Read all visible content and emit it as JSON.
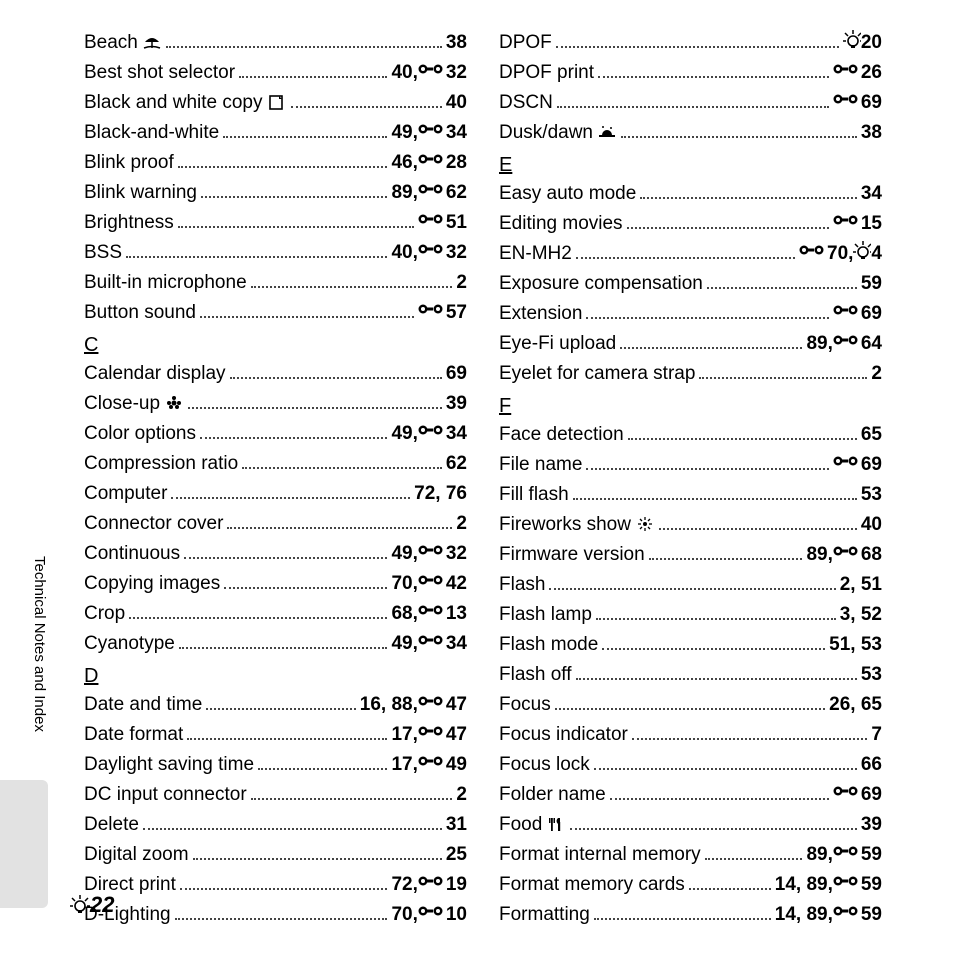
{
  "sideLabel": "Technical Notes and Index",
  "pageNumber": "22",
  "columns": [
    [
      {
        "t": "entry",
        "label": "Beach",
        "icon": "umbrella",
        "pages": [
          {
            "n": "38"
          }
        ]
      },
      {
        "t": "entry",
        "label": "Best shot selector",
        "pages": [
          {
            "n": "40,"
          },
          {
            "ref": true,
            "n": "32"
          }
        ]
      },
      {
        "t": "entry",
        "label": "Black and white copy",
        "icon": "doc",
        "pages": [
          {
            "n": "40"
          }
        ]
      },
      {
        "t": "entry",
        "label": "Black-and-white",
        "pages": [
          {
            "n": "49,"
          },
          {
            "ref": true,
            "n": "34"
          }
        ]
      },
      {
        "t": "entry",
        "label": "Blink proof",
        "pages": [
          {
            "n": "46,"
          },
          {
            "ref": true,
            "n": "28"
          }
        ]
      },
      {
        "t": "entry",
        "label": "Blink warning",
        "pages": [
          {
            "n": "89,"
          },
          {
            "ref": true,
            "n": "62"
          }
        ]
      },
      {
        "t": "entry",
        "label": "Brightness",
        "pages": [
          {
            "ref": true,
            "n": "51"
          }
        ]
      },
      {
        "t": "entry",
        "label": "BSS",
        "pages": [
          {
            "n": "40,"
          },
          {
            "ref": true,
            "n": "32"
          }
        ]
      },
      {
        "t": "entry",
        "label": "Built-in microphone",
        "pages": [
          {
            "n": "2"
          }
        ]
      },
      {
        "t": "entry",
        "label": "Button sound",
        "pages": [
          {
            "ref": true,
            "n": "57"
          }
        ]
      },
      {
        "t": "head",
        "label": "C"
      },
      {
        "t": "entry",
        "label": "Calendar display",
        "pages": [
          {
            "n": "69"
          }
        ]
      },
      {
        "t": "entry",
        "label": "Close-up",
        "icon": "flower",
        "pages": [
          {
            "n": "39"
          }
        ]
      },
      {
        "t": "entry",
        "label": "Color options",
        "pages": [
          {
            "n": "49,"
          },
          {
            "ref": true,
            "n": "34"
          }
        ]
      },
      {
        "t": "entry",
        "label": "Compression ratio",
        "pages": [
          {
            "n": "62"
          }
        ]
      },
      {
        "t": "entry",
        "label": "Computer",
        "pages": [
          {
            "n": "72, 76"
          }
        ]
      },
      {
        "t": "entry",
        "label": "Connector cover",
        "pages": [
          {
            "n": "2"
          }
        ]
      },
      {
        "t": "entry",
        "label": "Continuous",
        "pages": [
          {
            "n": "49,"
          },
          {
            "ref": true,
            "n": "32"
          }
        ]
      },
      {
        "t": "entry",
        "label": "Copying images",
        "pages": [
          {
            "n": "70,"
          },
          {
            "ref": true,
            "n": "42"
          }
        ]
      },
      {
        "t": "entry",
        "label": "Crop",
        "pages": [
          {
            "n": "68,"
          },
          {
            "ref": true,
            "n": "13"
          }
        ]
      },
      {
        "t": "entry",
        "label": "Cyanotype",
        "pages": [
          {
            "n": "49,"
          },
          {
            "ref": true,
            "n": "34"
          }
        ]
      },
      {
        "t": "head",
        "label": "D"
      },
      {
        "t": "entry",
        "label": "Date and time",
        "pages": [
          {
            "n": "16, 88,"
          },
          {
            "ref": true,
            "n": "47"
          }
        ]
      },
      {
        "t": "entry",
        "label": "Date format",
        "pages": [
          {
            "n": "17,"
          },
          {
            "ref": true,
            "n": "47"
          }
        ]
      },
      {
        "t": "entry",
        "label": "Daylight saving time",
        "pages": [
          {
            "n": "17,"
          },
          {
            "ref": true,
            "n": "49"
          }
        ]
      },
      {
        "t": "entry",
        "label": "DC input connector",
        "pages": [
          {
            "n": "2"
          }
        ]
      },
      {
        "t": "entry",
        "label": "Delete",
        "pages": [
          {
            "n": "31"
          }
        ]
      },
      {
        "t": "entry",
        "label": "Digital zoom",
        "pages": [
          {
            "n": "25"
          }
        ]
      },
      {
        "t": "entry",
        "label": "Direct print",
        "pages": [
          {
            "n": "72,"
          },
          {
            "ref": true,
            "n": "19"
          }
        ]
      },
      {
        "t": "entry",
        "label": "D-Lighting",
        "pages": [
          {
            "n": "70,"
          },
          {
            "ref": true,
            "n": "10"
          }
        ]
      }
    ],
    [
      {
        "t": "entry",
        "label": "DPOF",
        "pages": [
          {
            "bulb": true,
            "n": "20"
          }
        ]
      },
      {
        "t": "entry",
        "label": "DPOF print",
        "pages": [
          {
            "ref": true,
            "n": "26"
          }
        ]
      },
      {
        "t": "entry",
        "label": "DSCN",
        "pages": [
          {
            "ref": true,
            "n": "69"
          }
        ]
      },
      {
        "t": "entry",
        "label": "Dusk/dawn",
        "icon": "dusk",
        "pages": [
          {
            "n": "38"
          }
        ]
      },
      {
        "t": "head",
        "label": "E"
      },
      {
        "t": "entry",
        "label": "Easy auto mode",
        "pages": [
          {
            "n": "34"
          }
        ]
      },
      {
        "t": "entry",
        "label": "Editing movies",
        "pages": [
          {
            "ref": true,
            "n": "15"
          }
        ]
      },
      {
        "t": "entry",
        "label": "EN-MH2",
        "pages": [
          {
            "ref": true,
            "n": "70,"
          },
          {
            "bulb": true,
            "n": "4"
          }
        ]
      },
      {
        "t": "entry",
        "label": "Exposure compensation",
        "pages": [
          {
            "n": "59"
          }
        ]
      },
      {
        "t": "entry",
        "label": "Extension",
        "pages": [
          {
            "ref": true,
            "n": "69"
          }
        ]
      },
      {
        "t": "entry",
        "label": "Eye-Fi upload",
        "pages": [
          {
            "n": "89,"
          },
          {
            "ref": true,
            "n": "64"
          }
        ]
      },
      {
        "t": "entry",
        "label": "Eyelet for camera strap",
        "pages": [
          {
            "n": "2"
          }
        ]
      },
      {
        "t": "head",
        "label": "F"
      },
      {
        "t": "entry",
        "label": "Face detection",
        "pages": [
          {
            "n": "65"
          }
        ]
      },
      {
        "t": "entry",
        "label": "File name",
        "pages": [
          {
            "ref": true,
            "n": "69"
          }
        ]
      },
      {
        "t": "entry",
        "label": "Fill flash",
        "pages": [
          {
            "n": "53"
          }
        ]
      },
      {
        "t": "entry",
        "label": "Fireworks show",
        "icon": "fireworks",
        "pages": [
          {
            "n": "40"
          }
        ]
      },
      {
        "t": "entry",
        "label": "Firmware version",
        "pages": [
          {
            "n": "89,"
          },
          {
            "ref": true,
            "n": "68"
          }
        ]
      },
      {
        "t": "entry",
        "label": "Flash",
        "pages": [
          {
            "n": "2, 51"
          }
        ]
      },
      {
        "t": "entry",
        "label": "Flash lamp",
        "pages": [
          {
            "n": "3, 52"
          }
        ]
      },
      {
        "t": "entry",
        "label": "Flash mode",
        "pages": [
          {
            "n": "51, 53"
          }
        ]
      },
      {
        "t": "entry",
        "label": "Flash off",
        "pages": [
          {
            "n": "53"
          }
        ]
      },
      {
        "t": "entry",
        "label": "Focus",
        "pages": [
          {
            "n": "26, 65"
          }
        ]
      },
      {
        "t": "entry",
        "label": "Focus indicator",
        "pages": [
          {
            "n": "7"
          }
        ]
      },
      {
        "t": "entry",
        "label": "Focus lock",
        "pages": [
          {
            "n": "66"
          }
        ]
      },
      {
        "t": "entry",
        "label": "Folder name",
        "pages": [
          {
            "ref": true,
            "n": "69"
          }
        ]
      },
      {
        "t": "entry",
        "label": "Food",
        "icon": "fork",
        "pages": [
          {
            "n": "39"
          }
        ]
      },
      {
        "t": "entry",
        "label": "Format internal memory",
        "pages": [
          {
            "n": "89,"
          },
          {
            "ref": true,
            "n": "59"
          }
        ]
      },
      {
        "t": "entry",
        "label": "Format memory cards",
        "pages": [
          {
            "n": "14, 89,"
          },
          {
            "ref": true,
            "n": "59"
          }
        ]
      },
      {
        "t": "entry",
        "label": "Formatting",
        "pages": [
          {
            "n": "14, 89,"
          },
          {
            "ref": true,
            "n": "59"
          }
        ]
      }
    ]
  ]
}
